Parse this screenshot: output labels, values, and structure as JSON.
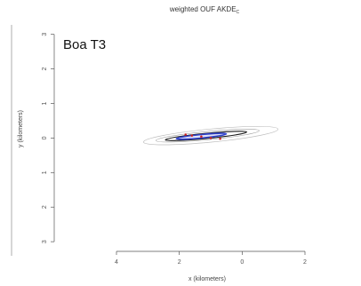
{
  "chart_data": {
    "type": "contour",
    "title": "weighted OUF AKDE",
    "title_subscript": "C",
    "panel_label": "Boa T3",
    "xlabel": "x (kilometers)",
    "ylabel": "y (kilometers)",
    "xlim": [
      -5.5,
      3.5
    ],
    "ylim": [
      -3.1,
      3.3
    ],
    "x_ticks": [
      {
        "value": -4,
        "label": "4"
      },
      {
        "value": -2,
        "label": "2"
      },
      {
        "value": 0,
        "label": "0"
      },
      {
        "value": 2,
        "label": "2"
      }
    ],
    "y_ticks": [
      {
        "value": 3,
        "label": "3"
      },
      {
        "value": 2,
        "label": "2"
      },
      {
        "value": 1,
        "label": "1"
      },
      {
        "value": 0,
        "label": "0"
      },
      {
        "value": -1,
        "label": "1"
      },
      {
        "value": -2,
        "label": "2"
      },
      {
        "value": -3,
        "label": "3"
      }
    ],
    "series": [
      {
        "role": "outer-ci",
        "color": "#bdbdbd",
        "center": [
          -1.0,
          0.07
        ],
        "rx": 2.15,
        "ry": 0.19,
        "angle_deg": -5.5
      },
      {
        "role": "middle-ci",
        "color": "#9e9e9e",
        "center": [
          -1.1,
          0.07
        ],
        "rx": 1.65,
        "ry": 0.12,
        "angle_deg": -5.5
      },
      {
        "role": "estimate",
        "color": "#1a1a1a",
        "center": [
          -1.15,
          0.06
        ],
        "rx": 1.3,
        "ry": 0.075,
        "angle_deg": -5.5
      },
      {
        "role": "core",
        "color": "#3344cc",
        "center": [
          -1.3,
          0.05
        ],
        "rx": 0.8,
        "ry": 0.05,
        "angle_deg": -5.5
      }
    ],
    "points": [
      {
        "x": -1.6,
        "y": 0.07
      },
      {
        "x": -1.3,
        "y": 0.04
      },
      {
        "x": -1.0,
        "y": 0.0
      },
      {
        "x": -0.7,
        "y": -0.02
      },
      {
        "x": -1.8,
        "y": 0.1
      }
    ],
    "colors": {
      "outer": "#bdbdbd",
      "estimate": "#1a1a1a",
      "core": "#3344cc",
      "points": "#cc2222",
      "axis": "#555555"
    },
    "grid": false
  }
}
